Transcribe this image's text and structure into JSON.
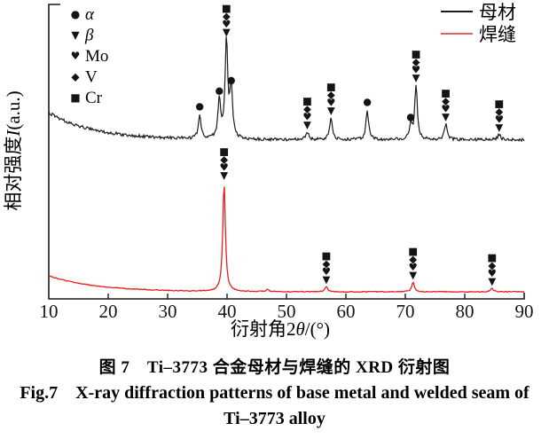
{
  "colors": {
    "base_series": "#1b1b1b",
    "weld_series": "#e32119",
    "marker": "#141414",
    "axis": "#1a1a1a",
    "tick_text": "#131320"
  },
  "legend_series": [
    {
      "label": "母材",
      "color": "#1b1b1b"
    },
    {
      "label": "焊缝",
      "color": "#e95f5c"
    }
  ],
  "legend_phases": [
    {
      "symbol": "●",
      "glyph_name": "filled-circle",
      "label": "α"
    },
    {
      "symbol": "▼",
      "glyph_name": "filled-triangle-down",
      "label": "β"
    },
    {
      "symbol": "♥",
      "glyph_name": "filled-heart",
      "label": "Mo"
    },
    {
      "symbol": "◆",
      "glyph_name": "filled-diamond",
      "label": "V"
    },
    {
      "symbol": "■",
      "glyph_name": "filled-square",
      "label": "Cr"
    }
  ],
  "axes": {
    "x_label": "衍射角2θ/(°)",
    "x_label_parts": {
      "prefix": "衍射角2",
      "theta": "θ",
      "suffix": "/(°)"
    },
    "y_label": "相对强度I(a.u.)",
    "y_label_parts": {
      "prefix": "相对强度",
      "symbol": "I",
      "suffix": "(a.u.)"
    },
    "x_ticks": [
      10,
      20,
      30,
      40,
      50,
      60,
      70,
      80,
      90
    ],
    "x_range": [
      10,
      90
    ]
  },
  "captions": {
    "zh": "图 7　Ti–3773 合金母材与焊缝的 XRD 衍射图",
    "en_line1": "Fig.7　X-ray diffraction patterns of base metal and welded seam of",
    "en_line2": "Ti–3773 alloy"
  },
  "chart_data": {
    "type": "line",
    "title": "XRD patterns of Ti-3773 base metal and welded seam",
    "xlabel": "衍射角2θ/(°)",
    "ylabel": "相对强度I(a.u.)",
    "x_range": [
      10,
      90
    ],
    "x_ticks": [
      10,
      20,
      30,
      40,
      50,
      60,
      70,
      80,
      90
    ],
    "y_units": "arbitrary units (relative intensity, two stacked traces)",
    "legend_position": "top-right",
    "grid": false,
    "phase_markers": {
      "α": "●",
      "β": "▼",
      "Mo": "♥",
      "V": "◆",
      "Cr": "■"
    },
    "series": [
      {
        "name": "母材",
        "name_en": "base metal",
        "color": "#1b1b1b",
        "background": "decaying amorphous hump from left, flattening after 2θ≈35°",
        "peaks": [
          {
            "two_theta": 35.4,
            "rel_h": 27,
            "phases": [
              "α"
            ]
          },
          {
            "two_theta": 38.7,
            "rel_h": 45,
            "phases": [
              "α"
            ]
          },
          {
            "two_theta": 39.9,
            "rel_h": 113,
            "phases": [
              "Cr",
              "V",
              "Mo",
              "β"
            ]
          },
          {
            "two_theta": 40.7,
            "rel_h": 57,
            "phases": [
              "α"
            ]
          },
          {
            "two_theta": 53.5,
            "rel_h": 9,
            "phases": [
              "Cr",
              "V",
              "Mo",
              "β"
            ]
          },
          {
            "two_theta": 57.5,
            "rel_h": 25,
            "phases": [
              "Cr",
              "V",
              "Mo",
              "β"
            ]
          },
          {
            "two_theta": 63.6,
            "rel_h": 33,
            "phases": [
              "α"
            ]
          },
          {
            "two_theta": 70.9,
            "rel_h": 16,
            "phases": [
              "α"
            ]
          },
          {
            "two_theta": 71.8,
            "rel_h": 62,
            "phases": [
              "Cr",
              "V",
              "Mo",
              "β"
            ]
          },
          {
            "two_theta": 76.8,
            "rel_h": 18,
            "phases": [
              "Cr",
              "V",
              "Mo",
              "β"
            ]
          },
          {
            "two_theta": 85.8,
            "rel_h": 6,
            "phases": [
              "Cr",
              "V",
              "Mo",
              "β"
            ]
          }
        ]
      },
      {
        "name": "焊缝",
        "name_en": "welded seam",
        "color": "#e32119",
        "background": "smooth decaying background from left, flat after 2θ≈30°",
        "peaks": [
          {
            "two_theta": 39.5,
            "rel_h": 123,
            "phases": [
              "Cr",
              "V",
              "Mo",
              "β"
            ]
          },
          {
            "two_theta": 46.8,
            "rel_h": 2.5,
            "phases": []
          },
          {
            "two_theta": 56.7,
            "rel_h": 6,
            "phases": [
              "Cr",
              "V",
              "Mo",
              "β"
            ]
          },
          {
            "two_theta": 71.3,
            "rel_h": 11,
            "phases": [
              "Cr",
              "V",
              "Mo",
              "β"
            ]
          },
          {
            "two_theta": 84.6,
            "rel_h": 4,
            "phases": [
              "Cr",
              "V",
              "Mo",
              "β"
            ]
          }
        ]
      }
    ]
  }
}
